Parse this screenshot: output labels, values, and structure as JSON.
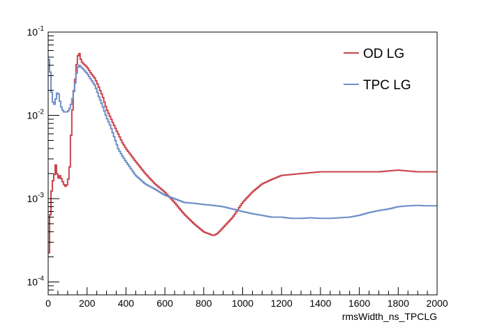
{
  "chart_data": {
    "type": "line",
    "style": "step",
    "xlabel": "rmsWidth_ns_TPCLG",
    "ylabel": "",
    "xlim": [
      0,
      2000
    ],
    "ylim": [
      7e-05,
      0.1
    ],
    "yscale": "log",
    "grid": false,
    "legend_position": "top-right",
    "x_ticks": [
      0,
      200,
      400,
      600,
      800,
      1000,
      1200,
      1400,
      1600,
      1800,
      2000
    ],
    "x_tick_labels": [
      "0",
      "200",
      "400",
      "600",
      "800",
      "1000",
      "1200",
      "1400",
      "1600",
      "1800",
      "2000"
    ],
    "y_ticks": [
      0.0001,
      0.001,
      0.01,
      0.1
    ],
    "y_tick_labels": [
      {
        "base": "10",
        "exp": "-4"
      },
      {
        "base": "10",
        "exp": "-3"
      },
      {
        "base": "10",
        "exp": "-2"
      },
      {
        "base": "10",
        "exp": "-1"
      }
    ],
    "series": [
      {
        "name": "OD LG",
        "color": "#c8454c",
        "x": [
          0,
          10,
          20,
          30,
          40,
          50,
          60,
          70,
          80,
          90,
          100,
          110,
          120,
          130,
          140,
          150,
          160,
          170,
          180,
          190,
          200,
          220,
          240,
          250,
          260,
          280,
          300,
          320,
          340,
          360,
          380,
          400,
          450,
          500,
          550,
          600,
          650,
          700,
          750,
          800,
          850,
          870,
          900,
          950,
          1000,
          1050,
          1100,
          1150,
          1200,
          1300,
          1400,
          1500,
          1600,
          1700,
          1800,
          1900,
          2000
        ],
        "y": [
          0.00013,
          0.0006,
          0.0015,
          0.0018,
          0.0026,
          0.0017,
          0.0019,
          0.0017,
          0.0015,
          0.0014,
          0.0015,
          0.0022,
          0.0075,
          0.018,
          0.028,
          0.05,
          0.056,
          0.045,
          0.042,
          0.04,
          0.038,
          0.032,
          0.028,
          0.025,
          0.022,
          0.017,
          0.012,
          0.0095,
          0.0075,
          0.006,
          0.0048,
          0.004,
          0.0028,
          0.002,
          0.0015,
          0.0012,
          0.0009,
          0.00065,
          0.0005,
          0.0004,
          0.00036,
          0.00038,
          0.00045,
          0.0006,
          0.0009,
          0.0012,
          0.0015,
          0.0017,
          0.0019,
          0.002,
          0.0021,
          0.0021,
          0.0021,
          0.0021,
          0.0022,
          0.0021,
          0.0021
        ]
      },
      {
        "name": "TPC LG",
        "color": "#6f8fc8",
        "x": [
          0,
          10,
          20,
          30,
          40,
          50,
          60,
          70,
          80,
          90,
          100,
          110,
          120,
          130,
          140,
          150,
          160,
          170,
          180,
          190,
          200,
          220,
          240,
          250,
          260,
          280,
          300,
          320,
          340,
          360,
          380,
          400,
          450,
          500,
          550,
          600,
          650,
          700,
          750,
          800,
          850,
          900,
          950,
          1000,
          1050,
          1100,
          1150,
          1200,
          1250,
          1300,
          1350,
          1400,
          1450,
          1500,
          1550,
          1600,
          1650,
          1700,
          1750,
          1800,
          1850,
          1900,
          1950,
          2000
        ],
        "y": [
          0.055,
          0.035,
          0.016,
          0.013,
          0.016,
          0.02,
          0.015,
          0.012,
          0.011,
          0.011,
          0.011,
          0.012,
          0.014,
          0.018,
          0.025,
          0.037,
          0.04,
          0.038,
          0.036,
          0.034,
          0.032,
          0.027,
          0.023,
          0.02,
          0.017,
          0.013,
          0.0095,
          0.0075,
          0.0055,
          0.004,
          0.0033,
          0.0028,
          0.0019,
          0.0015,
          0.0013,
          0.0011,
          0.001,
          0.0009,
          0.00088,
          0.00085,
          0.00083,
          0.0008,
          0.00075,
          0.0007,
          0.00066,
          0.00063,
          0.0006,
          0.0006,
          0.00058,
          0.00058,
          0.00059,
          0.00058,
          0.00058,
          0.00059,
          0.0006,
          0.00063,
          0.00068,
          0.00072,
          0.00075,
          0.0008,
          0.00082,
          0.00083,
          0.00082,
          0.00082
        ]
      }
    ]
  }
}
